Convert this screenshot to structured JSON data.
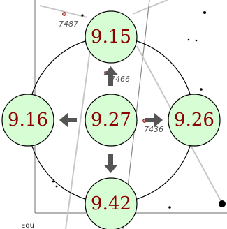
{
  "colors": {
    "disc_fill": "#d7fdd5",
    "disc_stroke": "#000000",
    "mag_text": "#8b0000",
    "arrow": "#555555",
    "line": "#c8c8c8",
    "frame": "#888888",
    "star": "#000000",
    "labeled_star_fill": "#e8a0a0",
    "labeled_star_stroke": "#8b0000",
    "star_label": "#555555"
  },
  "magnifier": {
    "center": {
      "value": "9.27"
    },
    "up": {
      "value": "9.15"
    },
    "left": {
      "value": "9.16"
    },
    "right": {
      "value": "9.26"
    },
    "down": {
      "value": "9.42"
    },
    "arrows": [
      "up",
      "left",
      "right",
      "down"
    ]
  },
  "stars": {
    "labeled": [
      {
        "label": "7487"
      },
      {
        "label": "7466"
      },
      {
        "label": "7436"
      }
    ]
  },
  "edge_label": "Equ"
}
